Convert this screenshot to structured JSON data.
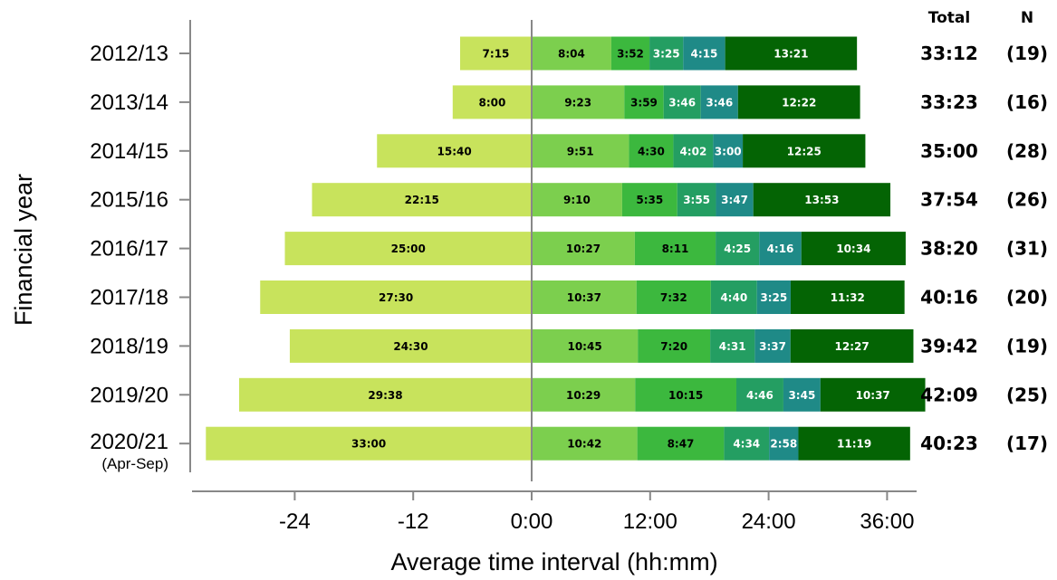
{
  "chart_data": {
    "type": "bar",
    "orientation": "horizontal-stacked-diverging",
    "xlabel": "Average time interval (hh:mm)",
    "ylabel": "Financial year",
    "x_ticks": [
      "-24",
      "-12",
      "0:00",
      "12:00",
      "24:00",
      "36:00"
    ],
    "x_tick_values": [
      -24,
      -12,
      0,
      12,
      24,
      36
    ],
    "xlim": [
      -32,
      39
    ],
    "columns": {
      "total": "Total",
      "n": "N"
    },
    "colors": [
      "#c8e35c",
      "#7ccf4e",
      "#3cb83e",
      "#249e62",
      "#1f8a87",
      "#046404"
    ],
    "segment_text_colors": [
      "#000000",
      "#000000",
      "#000000",
      "#ffffff",
      "#ffffff",
      "#ffffff"
    ],
    "rows": [
      {
        "year": "2012/13",
        "sub": "",
        "segments": [
          "7:15",
          "8:04",
          "3:52",
          "3:25",
          "4:15",
          "13:21"
        ],
        "total": "33:12",
        "n": "(19)"
      },
      {
        "year": "2013/14",
        "sub": "",
        "segments": [
          "8:00",
          "9:23",
          "3:59",
          "3:46",
          "3:46",
          "12:22"
        ],
        "total": "33:23",
        "n": "(16)"
      },
      {
        "year": "2014/15",
        "sub": "",
        "segments": [
          "15:40",
          "9:51",
          "4:30",
          "4:02",
          "3:00",
          "12:25"
        ],
        "total": "35:00",
        "n": "(28)"
      },
      {
        "year": "2015/16",
        "sub": "",
        "segments": [
          "22:15",
          "9:10",
          "5:35",
          "3:55",
          "3:47",
          "13:53"
        ],
        "total": "37:54",
        "n": "(26)"
      },
      {
        "year": "2016/17",
        "sub": "",
        "segments": [
          "25:00",
          "10:27",
          "8:11",
          "4:25",
          "4:16",
          "10:34"
        ],
        "total": "38:20",
        "n": "(31)"
      },
      {
        "year": "2017/18",
        "sub": "",
        "segments": [
          "27:30",
          "10:37",
          "7:32",
          "4:40",
          "3:25",
          "11:32"
        ],
        "total": "40:16",
        "n": "(20)"
      },
      {
        "year": "2018/19",
        "sub": "",
        "segments": [
          "24:30",
          "10:45",
          "7:20",
          "4:31",
          "3:37",
          "12:27"
        ],
        "total": "39:42",
        "n": "(19)"
      },
      {
        "year": "2019/20",
        "sub": "",
        "segments": [
          "29:38",
          "10:29",
          "10:15",
          "4:46",
          "3:45",
          "10:37"
        ],
        "total": "42:09",
        "n": "(25)"
      },
      {
        "year": "2020/21",
        "sub": "(Apr-Sep)",
        "segments": [
          "33:00",
          "10:42",
          "8:47",
          "4:34",
          "2:58",
          "11:19"
        ],
        "total": "40:23",
        "n": "(17)"
      }
    ]
  }
}
